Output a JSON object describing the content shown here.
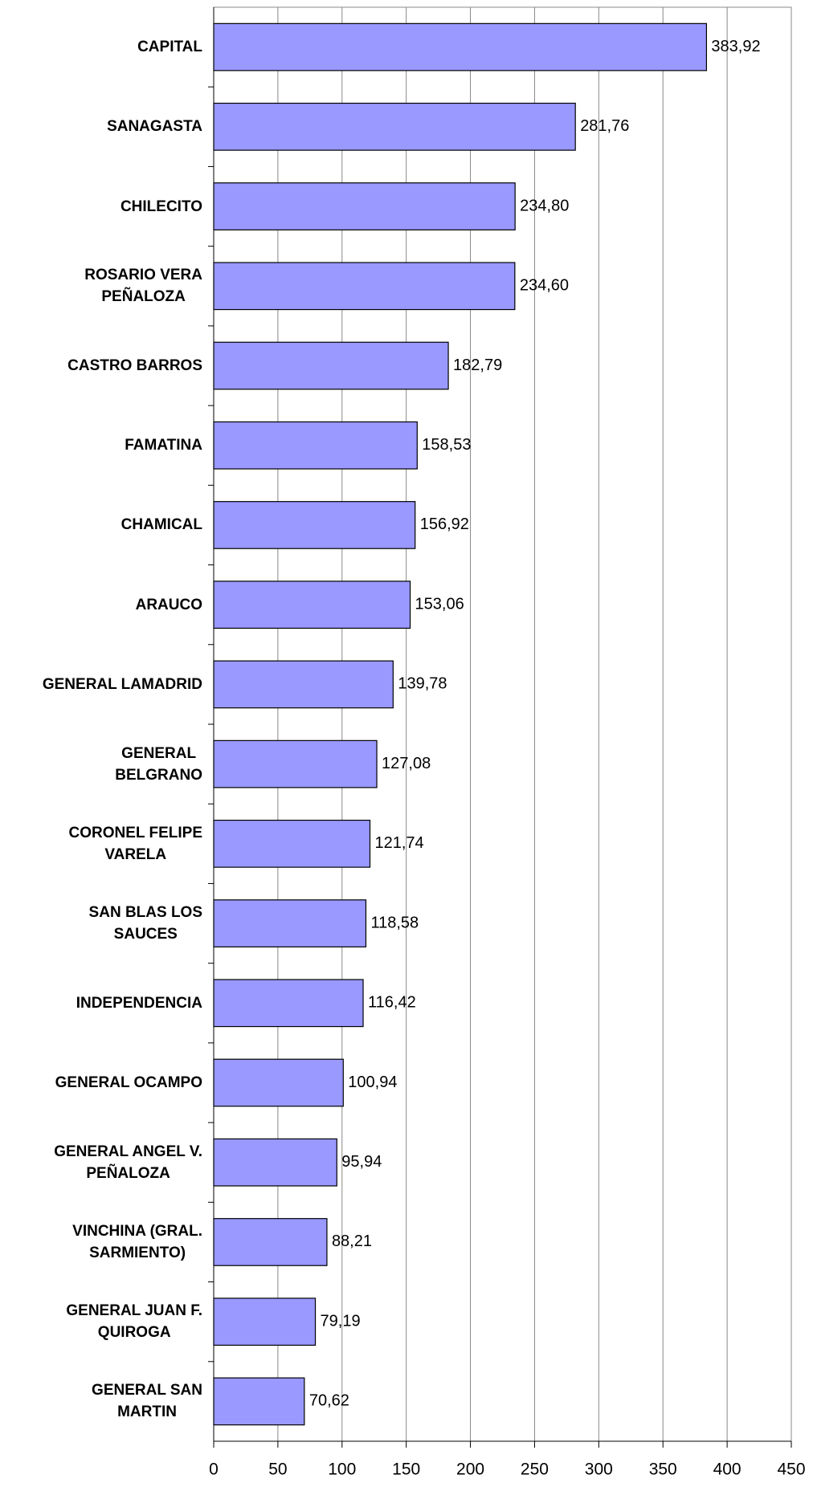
{
  "chart_data": {
    "type": "bar",
    "orientation": "horizontal",
    "categories": [
      "CAPITAL",
      "SANAGASTA",
      "CHILECITO",
      "ROSARIO VERA\nPEÑALOZA",
      "CASTRO BARROS",
      "FAMATINA",
      "CHAMICAL",
      "ARAUCO",
      "GENERAL LAMADRID",
      "GENERAL\nBELGRANO",
      "CORONEL FELIPE\nVARELA",
      "SAN BLAS LOS\nSAUCES",
      "INDEPENDENCIA",
      "GENERAL OCAMPO",
      "GENERAL ANGEL V.\nPEÑALOZA",
      "VINCHINA (GRAL.\nSARMIENTO)",
      "GENERAL JUAN F.\nQUIROGA",
      "GENERAL SAN\nMARTIN"
    ],
    "values": [
      383.92,
      281.76,
      234.8,
      234.6,
      182.79,
      158.53,
      156.92,
      153.06,
      139.78,
      127.08,
      121.74,
      118.58,
      116.42,
      100.94,
      95.94,
      88.21,
      79.19,
      70.62
    ],
    "value_labels": [
      "383,92",
      "281,76",
      "234,80",
      "234,60",
      "182,79",
      "158,53",
      "156,92",
      "153,06",
      "139,78",
      "127,08",
      "121,74",
      "118,58",
      "116,42",
      "100,94",
      "95,94",
      "88,21",
      "79,19",
      "70,62"
    ],
    "color": "#9999ff",
    "xlim": [
      0,
      450
    ],
    "xticks": [
      0,
      50,
      100,
      150,
      200,
      250,
      300,
      350,
      400,
      450
    ],
    "grid": true
  }
}
